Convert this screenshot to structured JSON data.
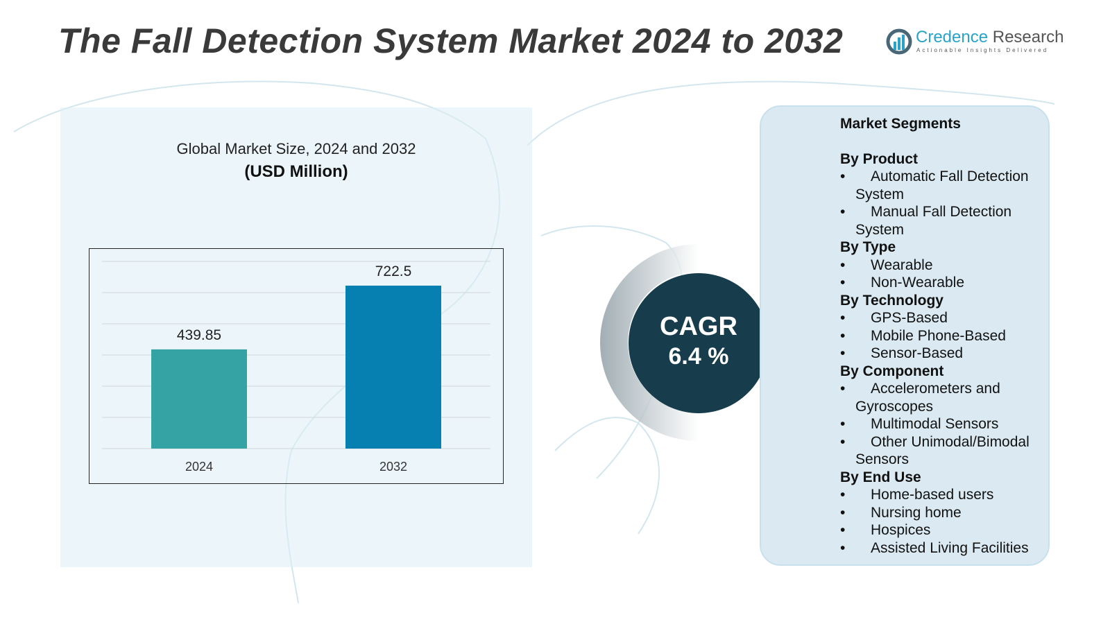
{
  "title": "The Fall Detection System Market 2024 to 2032",
  "logo": {
    "name_a": "Credence",
    "name_b": " Research",
    "tagline": "Actionable Insights Delivered"
  },
  "chart_data": {
    "type": "bar",
    "title": "Global Market Size, 2024 and 2032",
    "unit": "(USD Million)",
    "categories": [
      "2024",
      "2032"
    ],
    "values": [
      439.85,
      722.5
    ],
    "value_labels": [
      "439.85",
      "722.5"
    ],
    "colors": [
      "#35a3a3",
      "#0580b0"
    ],
    "ylim": [
      0,
      830
    ],
    "grid": true
  },
  "cagr": {
    "label": "CAGR",
    "value": "6.4 %"
  },
  "segments": {
    "title": "Market Segments",
    "groups": [
      {
        "name": "By Product",
        "items": [
          "Automatic Fall Detection System",
          "Manual Fall Detection System"
        ]
      },
      {
        "name": "By Type",
        "items": [
          "Wearable",
          "Non-Wearable"
        ]
      },
      {
        "name": "By Technology",
        "items": [
          "GPS-Based",
          "Mobile Phone-Based",
          "Sensor-Based"
        ]
      },
      {
        "name": "By Component",
        "items": [
          "Accelerometers and Gyroscopes",
          "Multimodal Sensors",
          "Other Unimodal/Bimodal Sensors"
        ]
      },
      {
        "name": "By End Use",
        "items": [
          "Home-based users",
          "Nursing home",
          "Hospices",
          "Assisted Living Facilities"
        ]
      }
    ]
  }
}
